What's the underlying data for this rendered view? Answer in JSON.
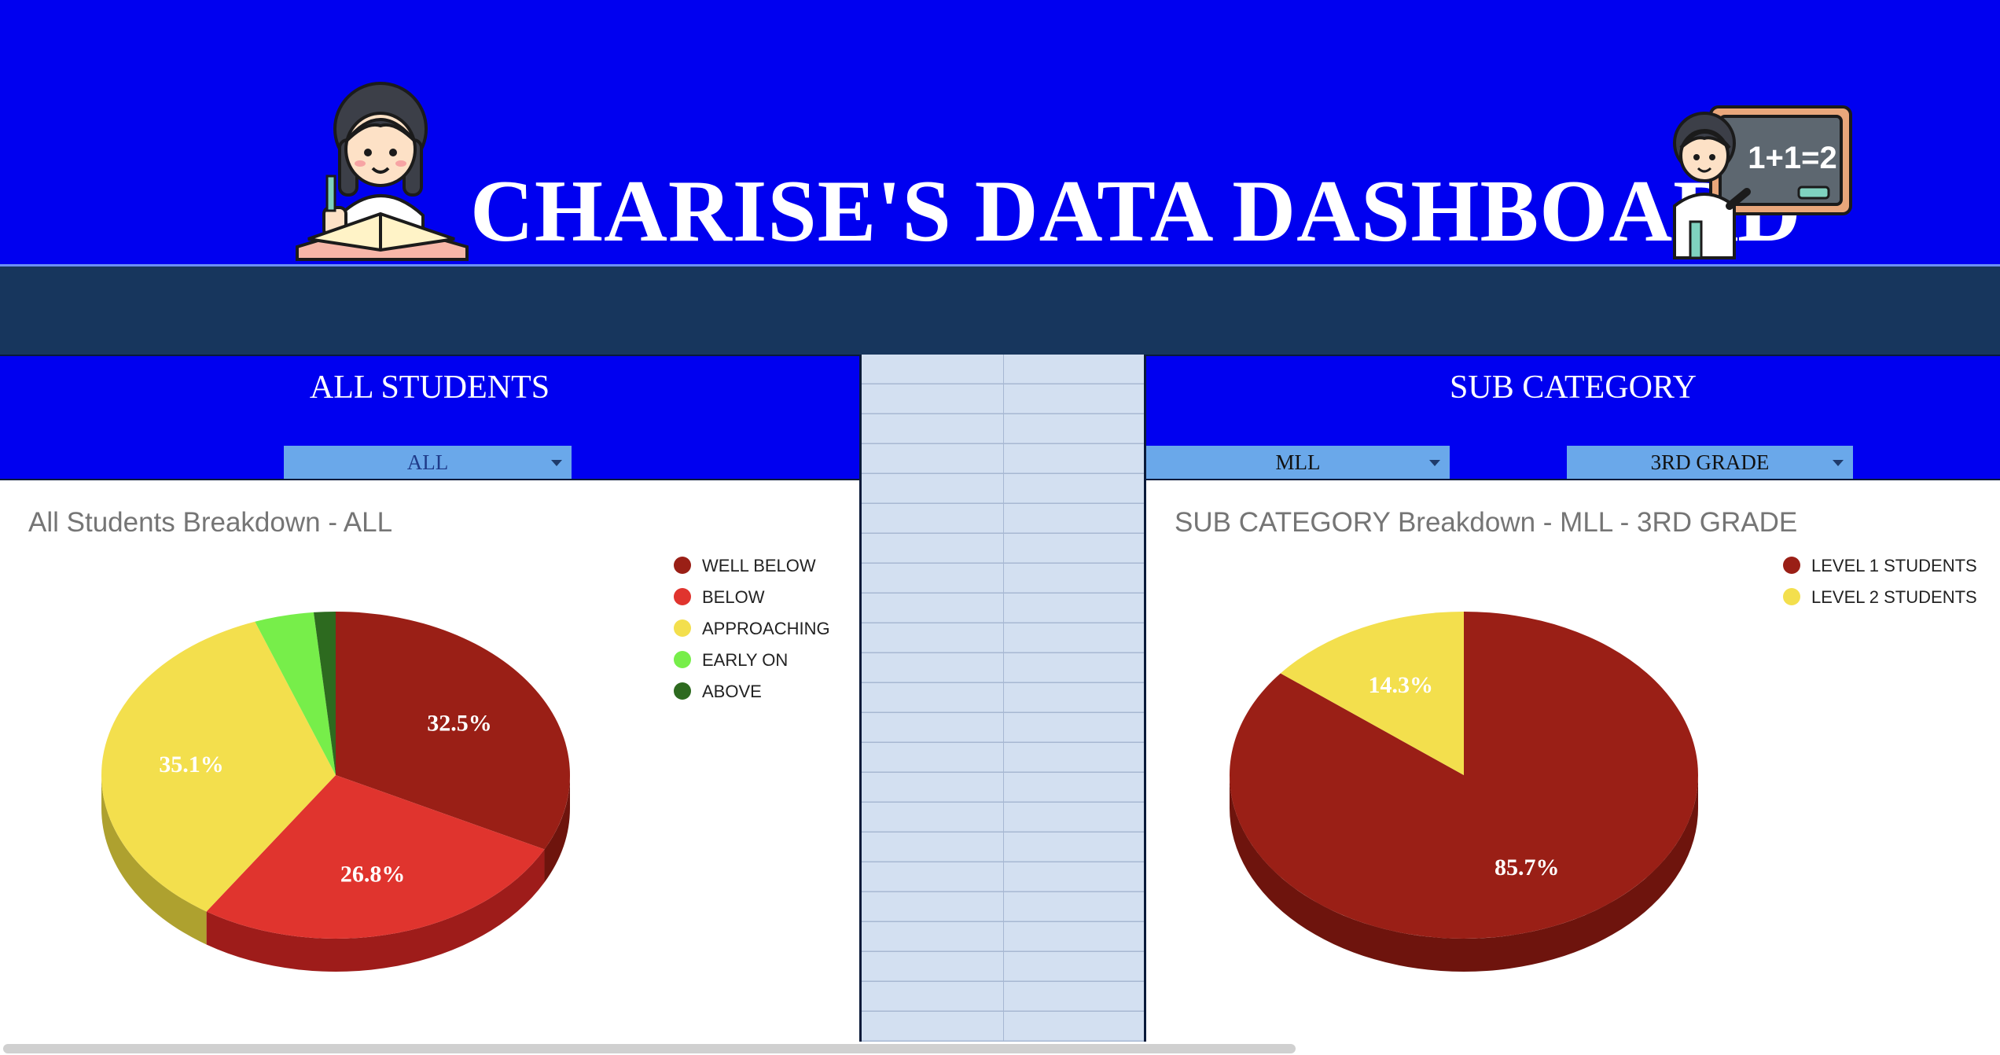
{
  "header": {
    "title": "CHARISE'S DATA DASHBOARD",
    "left_illustration": "teacher-reading-book-icon",
    "right_illustration": "teacher-chalkboard-icon",
    "chalkboard_text": "1+1=2"
  },
  "left_panel": {
    "title": "ALL STUDENTS",
    "filter": {
      "selected": "ALL",
      "text_color": "#1f3b8a"
    }
  },
  "right_panel": {
    "title": "SUB CATEGORY",
    "filters": [
      {
        "selected": "MLL"
      },
      {
        "selected": "3RD GRADE"
      }
    ]
  },
  "colors": {
    "header_blue": "#0000f0",
    "navy": "#17365d",
    "dropdown": "#6aa8ea",
    "grid": "#d3e0f1"
  },
  "chart_data": [
    {
      "type": "pie",
      "style": "3d",
      "title": "All Students Breakdown - ALL",
      "legend_position": "top-right",
      "categories": [
        "WELL BELOW",
        "BELOW",
        "APPROACHING",
        "EARLY ON",
        "ABOVE"
      ],
      "values": [
        32.5,
        26.8,
        35.1,
        4.1,
        1.5
      ],
      "labels": [
        "32.5%",
        "26.8%",
        "35.1%",
        "",
        ""
      ],
      "colors": [
        "#9a1f16",
        "#e0342e",
        "#f3df4d",
        "#77ee4a",
        "#2d6a1f"
      ],
      "shade_colors": [
        "#6e140d",
        "#9e1c1a",
        "#aea12f",
        "#4ea42e",
        "#1f4a14"
      ]
    },
    {
      "type": "pie",
      "style": "3d",
      "title": "SUB CATEGORY Breakdown - MLL - 3RD GRADE",
      "legend_position": "top-right",
      "categories": [
        "LEVEL 1 STUDENTS",
        "LEVEL 2 STUDENTS"
      ],
      "values": [
        85.7,
        14.3
      ],
      "labels": [
        "85.7%",
        "14.3%"
      ],
      "colors": [
        "#9a1f16",
        "#f3df4d"
      ],
      "shade_colors": [
        "#6e140d",
        "#aea12f"
      ]
    }
  ]
}
